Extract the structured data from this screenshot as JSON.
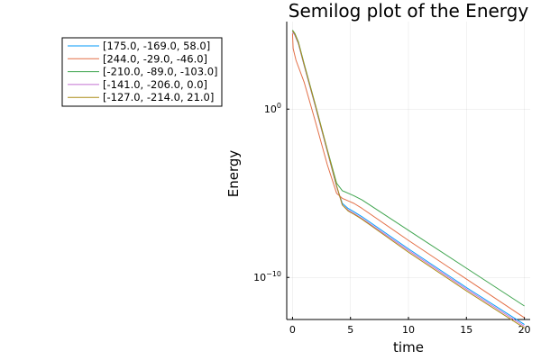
{
  "chart_data": {
    "type": "line",
    "title": "Semilog plot of the Energy",
    "xlabel": "time",
    "ylabel": "Energy",
    "xlim": [
      -0.5,
      20.5
    ],
    "xticks": [
      0,
      5,
      10,
      15,
      20
    ],
    "x_tick_labels": [
      "0",
      "5",
      "10",
      "15",
      "20"
    ],
    "yscale": "log",
    "ylim_log10": [
      -12.5,
      5.2
    ],
    "yticks_log10": [
      0,
      -10
    ],
    "y_tick_labels": [
      {
        "base": "10",
        "exp": "0"
      },
      {
        "base": "10",
        "exp": "−10"
      }
    ],
    "grid": true,
    "legend_position": "top-left",
    "series": [
      {
        "name": "[175.0, -169.0, 58.0]",
        "color": "#009AFA",
        "x": [
          0,
          0.2,
          0.5,
          1,
          2,
          3,
          3.8,
          4.3,
          4.8,
          5.3,
          6,
          10,
          15,
          20
        ],
        "log10_y": [
          4.6,
          4.4,
          3.9,
          2.6,
          0.1,
          -2.5,
          -4.6,
          -5.6,
          -5.9,
          -6.1,
          -6.4,
          -8.3,
          -10.6,
          -12.8
        ]
      },
      {
        "name": "[244.0, -29.0, -46.0]",
        "color": "#E36F47",
        "x": [
          0,
          0.05,
          0.3,
          1,
          2,
          3,
          3.8,
          4.3,
          4.8,
          5.3,
          6,
          10,
          15,
          20
        ],
        "log10_y": [
          4.5,
          3.6,
          2.9,
          1.6,
          -0.8,
          -3.3,
          -5.0,
          -5.3,
          -5.45,
          -5.6,
          -5.9,
          -7.8,
          -10.1,
          -12.4
        ]
      },
      {
        "name": "[-210.0, -89.0, -103.0]",
        "color": "#3EA44E",
        "x": [
          0,
          0.2,
          0.5,
          1,
          2,
          3,
          3.8,
          4.3,
          4.8,
          5.3,
          6,
          10,
          15,
          20
        ],
        "log10_y": [
          4.7,
          4.5,
          4.0,
          2.7,
          0.2,
          -2.4,
          -4.4,
          -4.85,
          -5.0,
          -5.15,
          -5.4,
          -7.2,
          -9.45,
          -11.7
        ]
      },
      {
        "name": "[-141.0, -206.0, 0.0]",
        "color": "#C371D2",
        "x": [
          0,
          0.2,
          0.5,
          1,
          2,
          3,
          3.8,
          4.3,
          4.8,
          5.3,
          6,
          10,
          15,
          20
        ],
        "log10_y": [
          4.6,
          4.4,
          3.9,
          2.6,
          0.1,
          -2.5,
          -4.6,
          -5.7,
          -6.0,
          -6.2,
          -6.5,
          -8.4,
          -10.7,
          -12.9
        ]
      },
      {
        "name": "[-127.0, -214.0, 21.0]",
        "color": "#AC8D18",
        "x": [
          0,
          0.2,
          0.5,
          1,
          2,
          3,
          3.8,
          4.3,
          4.8,
          5.3,
          6,
          10,
          15,
          20
        ],
        "log10_y": [
          4.65,
          4.45,
          3.95,
          2.65,
          0.15,
          -2.45,
          -4.55,
          -5.7,
          -6.05,
          -6.25,
          -6.55,
          -8.5,
          -10.8,
          -13.0
        ]
      }
    ]
  }
}
